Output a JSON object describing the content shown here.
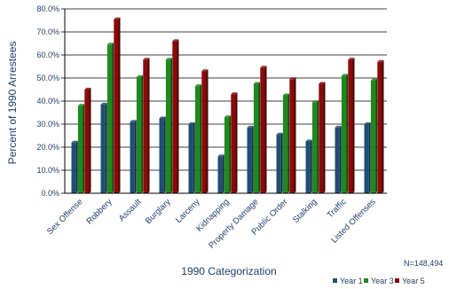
{
  "chart_data": {
    "type": "bar",
    "title": "",
    "xlabel": "1990 Categorization",
    "ylabel": "Percent of 1990 Arrestees",
    "ylim": [
      0,
      80
    ],
    "yticks": [
      "0.0%",
      "10.0%",
      "20.0%",
      "30.0%",
      "40.0%",
      "50.0%",
      "60.0%",
      "70.0%",
      "80.0%"
    ],
    "grid": true,
    "legend_position": "bottom-right",
    "note": "N=148,494",
    "categories": [
      "Sex Offense",
      "Robbery",
      "Assault",
      "Burglary",
      "Larceny",
      "Kidnapping",
      "Property Damage",
      "Public Order",
      "Stalking",
      "Traffic",
      "Listed Offenses"
    ],
    "series": [
      {
        "name": "Year 1",
        "color": "#1f4e73",
        "values": [
          22,
          38.5,
          31,
          32.5,
          30,
          16,
          28.5,
          25.5,
          22.5,
          28.5,
          30
        ]
      },
      {
        "name": "Year 3",
        "color": "#1e8a1e",
        "values": [
          38,
          64.5,
          50.5,
          58,
          46.5,
          33,
          47.5,
          42.5,
          39.5,
          51,
          49
        ]
      },
      {
        "name": "Year 5",
        "color": "#8b0a0a",
        "values": [
          45,
          75.5,
          58,
          66,
          53,
          43,
          54.5,
          49.5,
          47.5,
          58,
          57
        ]
      }
    ]
  }
}
